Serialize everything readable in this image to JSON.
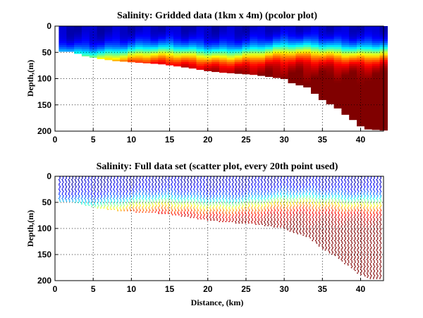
{
  "chart_data": [
    {
      "type": "heatmap",
      "title": "Salinity: Gridded data (1km x 4m) (pcolor plot)",
      "xlabel": "",
      "ylabel": "Depth,(m)",
      "xlim": [
        0,
        43
      ],
      "ylim": [
        0,
        200
      ],
      "y_reversed": true,
      "grid": "dotted",
      "xticks": [
        0,
        5,
        10,
        15,
        20,
        25,
        30,
        35,
        40
      ],
      "yticks": [
        0,
        50,
        100,
        150,
        200
      ],
      "colormap": "jet",
      "bottom_profile": [
        [
          0.5,
          48
        ],
        [
          2,
          48
        ],
        [
          3,
          52
        ],
        [
          4,
          57
        ],
        [
          6,
          62
        ],
        [
          8,
          66
        ],
        [
          10,
          68
        ],
        [
          12,
          70
        ],
        [
          14,
          72
        ],
        [
          16,
          76
        ],
        [
          18,
          80
        ],
        [
          20,
          85
        ],
        [
          22,
          88
        ],
        [
          24,
          90
        ],
        [
          26,
          92
        ],
        [
          28,
          96
        ],
        [
          30,
          100
        ],
        [
          31,
          108
        ],
        [
          33,
          116
        ],
        [
          34,
          128
        ],
        [
          35,
          140
        ],
        [
          36,
          148
        ],
        [
          37,
          156
        ],
        [
          38,
          168
        ],
        [
          39,
          178
        ],
        [
          40,
          190
        ],
        [
          41,
          196
        ],
        [
          43,
          198
        ]
      ]
    },
    {
      "type": "scatter",
      "title": "Salinity: Full data set (scatter plot, every 20th point used)",
      "xlabel": "Distance, (km)",
      "ylabel": "Depth,(m)",
      "xlim": [
        0,
        43
      ],
      "ylim": [
        0,
        200
      ],
      "y_reversed": true,
      "grid": "dotted",
      "xticks": [
        0,
        5,
        10,
        15,
        20,
        25,
        30,
        35,
        40
      ],
      "yticks": [
        0,
        50,
        100,
        150,
        200
      ],
      "colormap": "jet",
      "bottom_profile": [
        [
          0.5,
          48
        ],
        [
          2,
          48
        ],
        [
          3,
          52
        ],
        [
          4,
          57
        ],
        [
          6,
          62
        ],
        [
          8,
          66
        ],
        [
          10,
          68
        ],
        [
          12,
          70
        ],
        [
          14,
          72
        ],
        [
          16,
          76
        ],
        [
          18,
          80
        ],
        [
          20,
          85
        ],
        [
          22,
          88
        ],
        [
          24,
          90
        ],
        [
          26,
          92
        ],
        [
          28,
          96
        ],
        [
          30,
          100
        ],
        [
          31,
          108
        ],
        [
          33,
          116
        ],
        [
          34,
          128
        ],
        [
          35,
          140
        ],
        [
          36,
          148
        ],
        [
          37,
          156
        ],
        [
          38,
          168
        ],
        [
          39,
          178
        ],
        [
          40,
          190
        ],
        [
          41,
          196
        ],
        [
          43,
          198
        ]
      ]
    }
  ]
}
